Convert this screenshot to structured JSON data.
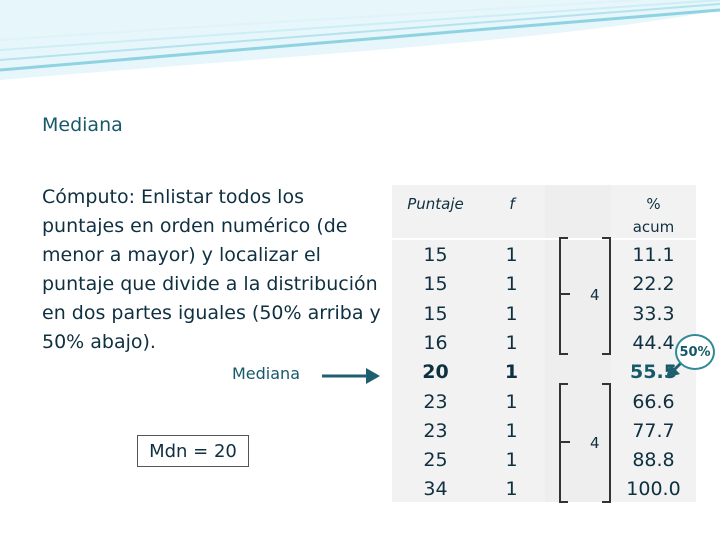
{
  "title": "Mediana",
  "body_text": "Cómputo: Enlistar todos los puntajes en orden numérico (de menor a mayor) y localizar el puntaje que divide a la distribución en dos partes iguales (50% arriba y 50% abajo).",
  "mediana_label": "Mediana",
  "mdn_result": "Mdn = 20",
  "table": {
    "headers": {
      "puntaje": "Puntaje",
      "f": "f",
      "gap": "",
      "acum_line1": "%",
      "acum_line2": "acum"
    },
    "rows": [
      {
        "puntaje": "15",
        "f": "1",
        "acum": "11.1"
      },
      {
        "puntaje": "15",
        "f": "1",
        "acum": "22.2"
      },
      {
        "puntaje": "15",
        "f": "1",
        "acum": "33.3"
      },
      {
        "puntaje": "16",
        "f": "1",
        "acum": "44.4"
      },
      {
        "puntaje": "20",
        "f": "1",
        "acum": "55.5"
      },
      {
        "puntaje": "23",
        "f": "1",
        "acum": "66.6"
      },
      {
        "puntaje": "23",
        "f": "1",
        "acum": "77.7"
      },
      {
        "puntaje": "25",
        "f": "1",
        "acum": "88.8"
      },
      {
        "puntaje": "34",
        "f": "1",
        "acum": "100.0"
      }
    ],
    "median_row_index": 4
  },
  "bracket_counts": {
    "upper": "4",
    "lower": "4"
  },
  "pct_badge": "50%",
  "colors": {
    "accent": "#17596a",
    "arrow": "#1f5f70",
    "badge_border": "#2f8a96",
    "wave": "#8fd3e3"
  }
}
